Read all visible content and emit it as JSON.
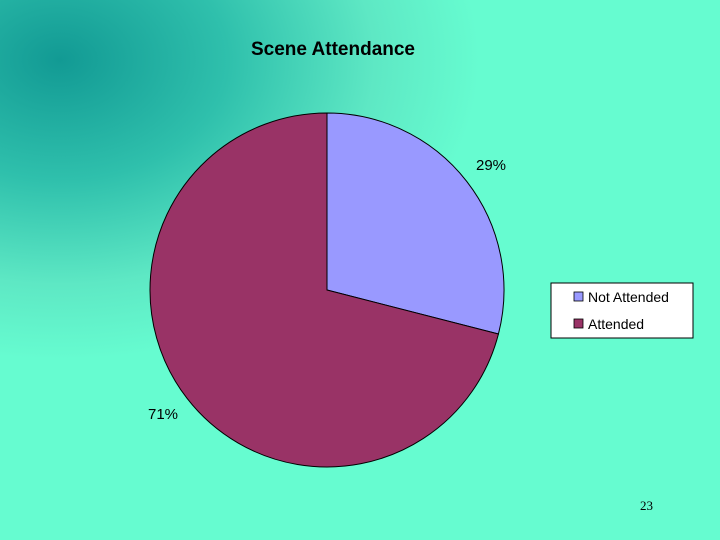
{
  "chart_data": {
    "type": "pie",
    "title": "Scene Attendance",
    "labels": [
      "Not Attended",
      "Attended"
    ],
    "values": [
      29,
      71
    ],
    "data_labels": [
      "29%",
      "71%"
    ],
    "colors": [
      "#9999ff",
      "#993366"
    ],
    "legend_position": "right"
  },
  "page": {
    "number": "23"
  }
}
